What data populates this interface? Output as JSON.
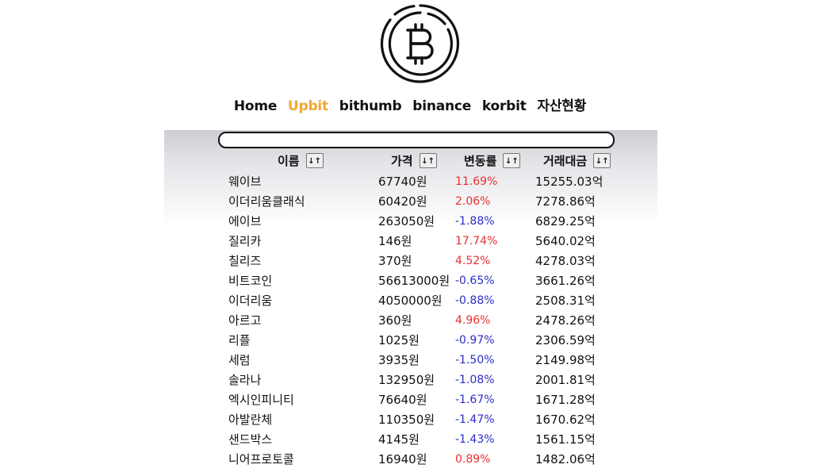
{
  "nav": {
    "items": [
      "Home",
      "Upbit",
      "bithumb",
      "binance",
      "korbit",
      "자산현황"
    ],
    "active_index": 1
  },
  "colors": {
    "active_nav": "#f0a832",
    "rise": "#e53030",
    "fall": "#2d2dc8"
  },
  "logo": {
    "icon": "bitcoin-icon"
  },
  "search": {
    "value": "",
    "placeholder": ""
  },
  "table": {
    "headers": {
      "name": "이름",
      "price": "가격",
      "change": "변동률",
      "volume": "거래대금"
    },
    "sort_glyph": "↓↑",
    "rows": [
      {
        "name": "웨이브",
        "price": "67740원",
        "change": "11.69%",
        "dir": "up",
        "volume": "15255.03억"
      },
      {
        "name": "이더리움클래식",
        "price": "60420원",
        "change": "2.06%",
        "dir": "up",
        "volume": "7278.86억"
      },
      {
        "name": "에이브",
        "price": "263050원",
        "change": "-1.88%",
        "dir": "down",
        "volume": "6829.25억"
      },
      {
        "name": "질리카",
        "price": "146원",
        "change": "17.74%",
        "dir": "up",
        "volume": "5640.02억"
      },
      {
        "name": "칠리즈",
        "price": "370원",
        "change": "4.52%",
        "dir": "up",
        "volume": "4278.03억"
      },
      {
        "name": "비트코인",
        "price": "56613000원",
        "change": "-0.65%",
        "dir": "down",
        "volume": "3661.26억"
      },
      {
        "name": "이더리움",
        "price": "4050000원",
        "change": "-0.88%",
        "dir": "down",
        "volume": "2508.31억"
      },
      {
        "name": "아르고",
        "price": "360원",
        "change": "4.96%",
        "dir": "up",
        "volume": "2478.26억"
      },
      {
        "name": "리플",
        "price": "1025원",
        "change": "-0.97%",
        "dir": "down",
        "volume": "2306.59억"
      },
      {
        "name": "세럼",
        "price": "3935원",
        "change": "-1.50%",
        "dir": "down",
        "volume": "2149.98억"
      },
      {
        "name": "솔라나",
        "price": "132950원",
        "change": "-1.08%",
        "dir": "down",
        "volume": "2001.81억"
      },
      {
        "name": "엑시인피니티",
        "price": "76640원",
        "change": "-1.67%",
        "dir": "down",
        "volume": "1671.28억"
      },
      {
        "name": "아발란체",
        "price": "110350원",
        "change": "-1.47%",
        "dir": "down",
        "volume": "1670.62억"
      },
      {
        "name": "샌드박스",
        "price": "4145원",
        "change": "-1.43%",
        "dir": "down",
        "volume": "1561.15억"
      },
      {
        "name": "니어프로토콜",
        "price": "16940원",
        "change": "0.89%",
        "dir": "up",
        "volume": "1482.06억"
      }
    ]
  }
}
